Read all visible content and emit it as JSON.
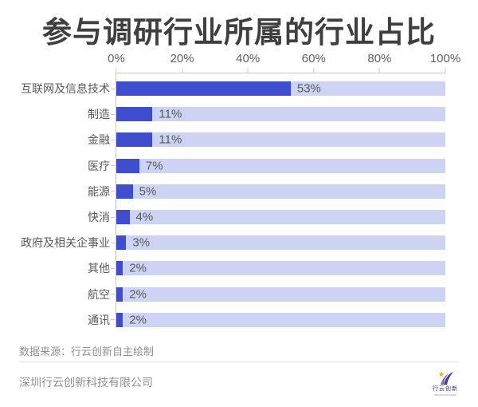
{
  "title": "参与调研行业所属的行业占比",
  "chart_data": {
    "type": "bar",
    "orientation": "horizontal",
    "title": "参与调研行业所属的行业占比",
    "categories": [
      "互联网及信息技术",
      "制造",
      "金融",
      "医疗",
      "能源",
      "快消",
      "政府及相关企事业",
      "其他",
      "航空",
      "通讯"
    ],
    "values": [
      53,
      11,
      11,
      7,
      5,
      4,
      3,
      2,
      2,
      2
    ],
    "value_labels": [
      "53%",
      "11%",
      "11%",
      "7%",
      "5%",
      "4%",
      "3%",
      "2%",
      "2%",
      "2%"
    ],
    "x_ticks": [
      "0%",
      "20%",
      "40%",
      "60%",
      "80%",
      "100%"
    ],
    "xlim": [
      0,
      100
    ],
    "grid": false,
    "legend": "none",
    "bar_color": "#3E4ECD",
    "track_color": "#CDD3F2",
    "axis_color": "#C9C9C9"
  },
  "footer": {
    "source": "数据来源：行云创新自主绘制",
    "company": "深圳行云创新科技有限公司",
    "logo_text": "行云创新",
    "logo_colors": {
      "swoosh_dark": "#4A3F8F",
      "swoosh_light": "#7A6BB5",
      "star": "#F0B429"
    }
  }
}
